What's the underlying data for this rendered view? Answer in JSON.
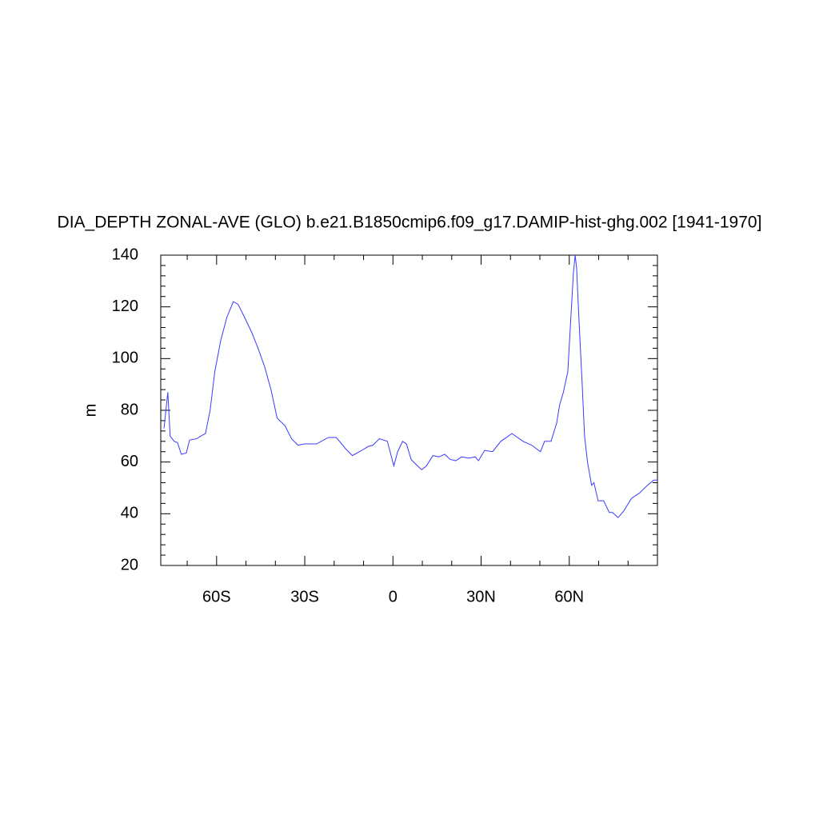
{
  "chart_data": {
    "type": "line",
    "title": "DIA_DEPTH ZONAL-AVE (GLO) b.e21.B1850cmip6.f09_g17.DAMIP-hist-ghg.002 [1941-1970]",
    "y_label": "m",
    "xlim": [
      -79,
      90
    ],
    "ylim": [
      20,
      140
    ],
    "xticks": [
      {
        "value": -60,
        "label": "60S"
      },
      {
        "value": -30,
        "label": "30S"
      },
      0,
      {
        "value": 30,
        "label": "30N"
      },
      {
        "value": 60,
        "label": "60N"
      }
    ],
    "yticks": [
      20,
      40,
      60,
      80,
      100,
      120,
      140
    ],
    "xminorticks": [
      -70,
      -50,
      -40,
      -20,
      -10,
      10,
      20,
      40,
      50,
      70,
      80
    ],
    "yminorticks": [
      24,
      28,
      32,
      36,
      44,
      48,
      52,
      56,
      64,
      68,
      72,
      76,
      84,
      88,
      92,
      96,
      104,
      108,
      112,
      116,
      124,
      128,
      132,
      136
    ],
    "series": [
      {
        "color": "#3a3aff",
        "x": [
          -77.9,
          -76.6,
          -75.8,
          -74.4,
          -73.3,
          -72,
          -70.3,
          -69.2,
          -66.8,
          -65.4,
          -63.8,
          -62.2,
          -60.6,
          -58.6,
          -56.5,
          -54.3,
          -52.7,
          -50.5,
          -48,
          -45.9,
          -43.7,
          -41.5,
          -39.4,
          -36.7,
          -34.5,
          -32.3,
          -30.1,
          -26,
          -22,
          -19.3,
          -16,
          -13.8,
          -10.6,
          -8.4,
          -6.8,
          -4.6,
          -1.9,
          0.3,
          1.6,
          3.3,
          4.6,
          6.2,
          7.9,
          9.8,
          11.4,
          13.6,
          15.7,
          17.6,
          19.5,
          21.4,
          23.4,
          25.8,
          28,
          29.1,
          31.2,
          33.9,
          36.7,
          40.5,
          44.3,
          47.2,
          50.2,
          51.6,
          53.8,
          55.7,
          56.7,
          58,
          59.5,
          60.5,
          61.4,
          62,
          62.5,
          63.3,
          64.4,
          65.2,
          66.2,
          67.6,
          68.4,
          69.8,
          71.7,
          73.6,
          74.7,
          76.6,
          78.5,
          81.2,
          83.9,
          86.6,
          88.8,
          90
        ],
        "values": [
          73,
          87,
          70,
          68,
          67.5,
          63,
          63.5,
          68.5,
          69,
          70,
          71,
          80,
          95,
          107,
          116,
          122,
          121,
          116,
          110,
          104,
          97,
          88,
          77,
          74,
          69,
          66.5,
          67,
          67,
          69.5,
          69.5,
          65,
          62.5,
          64.5,
          66,
          66.5,
          69,
          68,
          58.5,
          64,
          68,
          67,
          61,
          59,
          57,
          58.5,
          62.5,
          62,
          63,
          61,
          60.5,
          62,
          61.5,
          62,
          60.5,
          64.5,
          64,
          68,
          71,
          68,
          66.5,
          64,
          68,
          68,
          75,
          82,
          87,
          95,
          115,
          133,
          140,
          135,
          115,
          90,
          70,
          60,
          51,
          52,
          45,
          45,
          40.5,
          40.5,
          38.5,
          41,
          46,
          48,
          51,
          53,
          53
        ]
      }
    ]
  }
}
